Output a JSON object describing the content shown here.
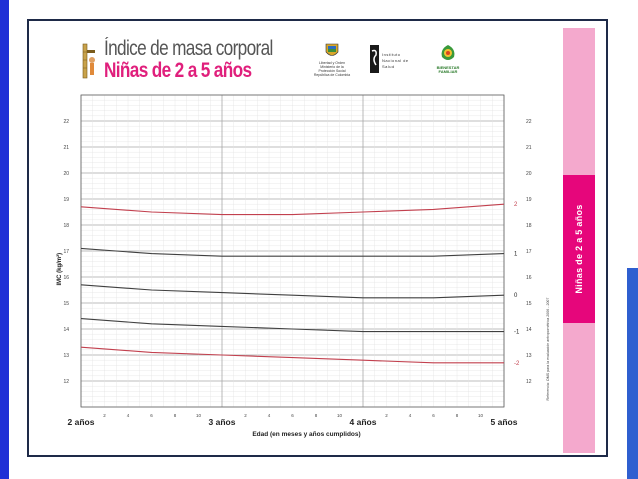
{
  "header": {
    "title": "Índice de masa corporal",
    "subtitle": "Niñas de 2 a 5 años",
    "logos": [
      {
        "name": "coat-of-arms",
        "lines": [
          "Libertad y Orden",
          "Ministerio de la Protección Social",
          "República de Colombia"
        ]
      },
      {
        "name": "instituto-nacional-de-salud",
        "lines": [
          "Instituto",
          "Nacional de",
          "Salud"
        ]
      },
      {
        "name": "bienestar-familiar",
        "lines": [
          "BIENESTAR",
          "FAMILIAR"
        ]
      }
    ]
  },
  "side_band": {
    "label": "Niñas de 2 a 5 años",
    "reference_text": "Referencia: OMS para la evaluación antropométrica   2006 - 2007"
  },
  "colors": {
    "accent_magenta": "#e6067b",
    "pink_band": "#f4a9cd",
    "red_curve": "#c2404e",
    "black_curve": "#404040",
    "grid": "#d0d0d0",
    "frame": "#1e2a48"
  },
  "chart_data": {
    "type": "line",
    "title": "",
    "xlabel": "Edad (en meses y años cumplidos)",
    "ylabel": "IMC (kg/m²)",
    "xlim": [
      24,
      60
    ],
    "ylim": [
      11,
      23
    ],
    "y_ticks": [
      12,
      13,
      14,
      15,
      16,
      17,
      18,
      19,
      20,
      21,
      22
    ],
    "x_major_ticks": [
      {
        "x": 24,
        "label": "2 años"
      },
      {
        "x": 36,
        "label": "3 años"
      },
      {
        "x": 48,
        "label": "4 años"
      },
      {
        "x": 60,
        "label": "5 años"
      }
    ],
    "x_month_labels": [
      "2",
      "4",
      "6",
      "8",
      "10"
    ],
    "x": [
      24,
      30,
      36,
      42,
      48,
      54,
      60
    ],
    "series": [
      {
        "name": "2",
        "color": "red",
        "values": [
          18.7,
          18.5,
          18.4,
          18.4,
          18.5,
          18.6,
          18.8
        ]
      },
      {
        "name": "1",
        "color": "black",
        "values": [
          17.1,
          16.9,
          16.8,
          16.8,
          16.8,
          16.8,
          16.9
        ]
      },
      {
        "name": "0",
        "color": "black",
        "values": [
          15.7,
          15.5,
          15.4,
          15.3,
          15.2,
          15.2,
          15.3
        ]
      },
      {
        "name": "-1",
        "color": "black",
        "values": [
          14.4,
          14.2,
          14.1,
          14.0,
          13.9,
          13.9,
          13.9
        ]
      },
      {
        "name": "-2",
        "color": "red",
        "values": [
          13.3,
          13.1,
          13.0,
          12.9,
          12.8,
          12.7,
          12.7
        ]
      }
    ],
    "grid": true,
    "legend": "none (curve labels at right end)"
  }
}
